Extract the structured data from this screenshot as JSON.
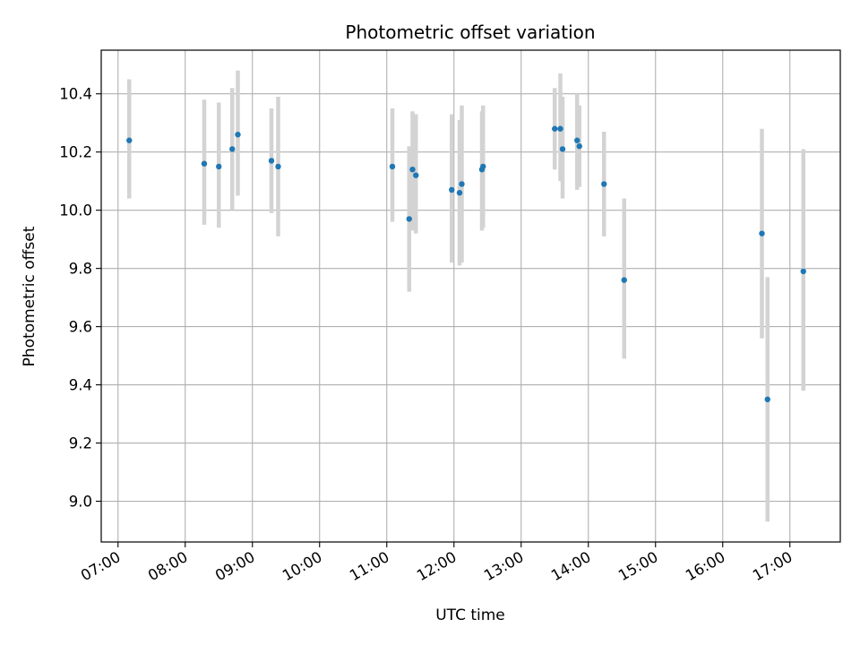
{
  "chart_data": {
    "type": "scatter",
    "title": "Photometric offset variation",
    "xlabel": "UTC time",
    "ylabel": "Photometric offset",
    "x_unit": "UTC hour of day",
    "xlim": [
      "06:45",
      "17:45"
    ],
    "ylim": [
      8.86,
      10.55
    ],
    "grid": true,
    "x_ticks": [
      "07:00",
      "08:00",
      "09:00",
      "10:00",
      "11:00",
      "12:00",
      "13:00",
      "14:00",
      "15:00",
      "16:00",
      "17:00"
    ],
    "y_ticks": [
      "9.0",
      "9.2",
      "9.4",
      "9.6",
      "9.8",
      "10.0",
      "10.2",
      "10.4"
    ],
    "colors": {
      "point": "#1f77b4",
      "errorbar": "#d3d3d3",
      "grid": "#b0b0b0"
    },
    "points": [
      {
        "x": "07:10",
        "y": 10.24,
        "err_low": 10.04,
        "err_high": 10.45
      },
      {
        "x": "08:17",
        "y": 10.16,
        "err_low": 9.95,
        "err_high": 10.38
      },
      {
        "x": "08:30",
        "y": 10.15,
        "err_low": 9.94,
        "err_high": 10.37
      },
      {
        "x": "08:42",
        "y": 10.21,
        "err_low": 10.0,
        "err_high": 10.42
      },
      {
        "x": "08:47",
        "y": 10.26,
        "err_low": 10.05,
        "err_high": 10.48
      },
      {
        "x": "09:17",
        "y": 10.17,
        "err_low": 9.99,
        "err_high": 10.35
      },
      {
        "x": "09:23",
        "y": 10.15,
        "err_low": 9.91,
        "err_high": 10.39
      },
      {
        "x": "11:05",
        "y": 10.15,
        "err_low": 9.96,
        "err_high": 10.35
      },
      {
        "x": "11:20",
        "y": 9.97,
        "err_low": 9.72,
        "err_high": 10.22
      },
      {
        "x": "11:23",
        "y": 10.14,
        "err_low": 9.93,
        "err_high": 10.34
      },
      {
        "x": "11:26",
        "y": 10.12,
        "err_low": 9.92,
        "err_high": 10.33
      },
      {
        "x": "11:58",
        "y": 10.07,
        "err_low": 9.82,
        "err_high": 10.33
      },
      {
        "x": "12:05",
        "y": 10.06,
        "err_low": 9.81,
        "err_high": 10.31
      },
      {
        "x": "12:07",
        "y": 10.09,
        "err_low": 9.82,
        "err_high": 10.36
      },
      {
        "x": "12:25",
        "y": 10.14,
        "err_low": 9.93,
        "err_high": 10.34
      },
      {
        "x": "12:26",
        "y": 10.15,
        "err_low": 9.94,
        "err_high": 10.36
      },
      {
        "x": "13:30",
        "y": 10.28,
        "err_low": 10.14,
        "err_high": 10.42
      },
      {
        "x": "13:35",
        "y": 10.28,
        "err_low": 10.1,
        "err_high": 10.47
      },
      {
        "x": "13:37",
        "y": 10.21,
        "err_low": 10.04,
        "err_high": 10.39
      },
      {
        "x": "13:50",
        "y": 10.24,
        "err_low": 10.07,
        "err_high": 10.4
      },
      {
        "x": "13:52",
        "y": 10.22,
        "err_low": 10.08,
        "err_high": 10.36
      },
      {
        "x": "14:14",
        "y": 10.09,
        "err_low": 9.91,
        "err_high": 10.27
      },
      {
        "x": "14:32",
        "y": 9.76,
        "err_low": 9.49,
        "err_high": 10.04
      },
      {
        "x": "16:35",
        "y": 9.92,
        "err_low": 9.56,
        "err_high": 10.28
      },
      {
        "x": "16:40",
        "y": 9.35,
        "err_low": 8.93,
        "err_high": 9.77
      },
      {
        "x": "17:12",
        "y": 9.79,
        "err_low": 9.38,
        "err_high": 10.21
      }
    ]
  }
}
